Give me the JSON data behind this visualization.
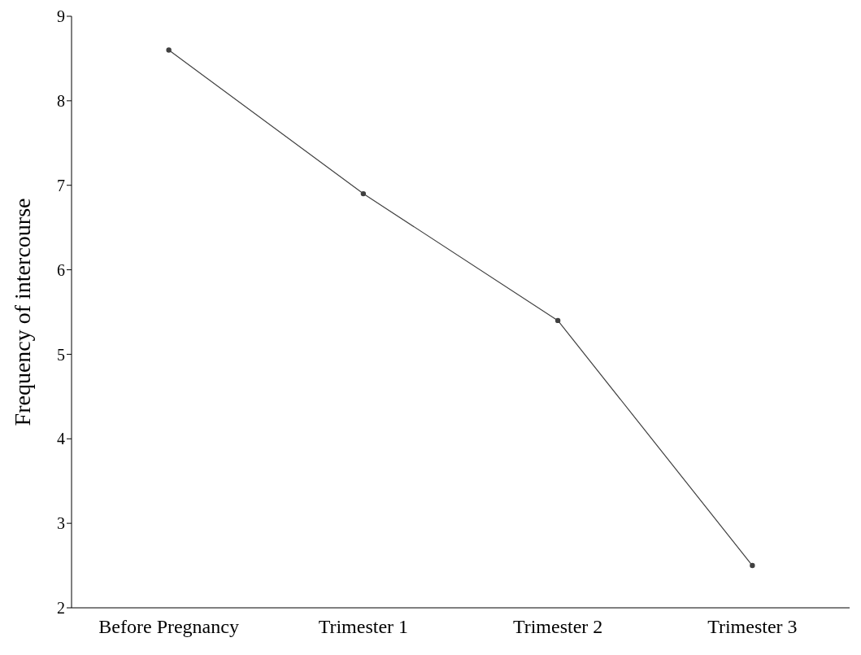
{
  "chart_data": {
    "type": "line",
    "ylabel": "Frequency of intercourse",
    "categories": [
      "Before Pregnancy",
      "Trimester 1",
      "Trimester 2",
      "Trimester 3"
    ],
    "series": [
      {
        "color": "#404040",
        "values": [
          8.6,
          6.9,
          5.4,
          2.5
        ]
      }
    ],
    "ylim": [
      2,
      9
    ],
    "yticks": [
      2,
      3,
      4,
      5,
      6,
      7,
      8,
      9
    ],
    "grid": false,
    "legend": false,
    "marker": "circle",
    "line_style": "solid"
  }
}
